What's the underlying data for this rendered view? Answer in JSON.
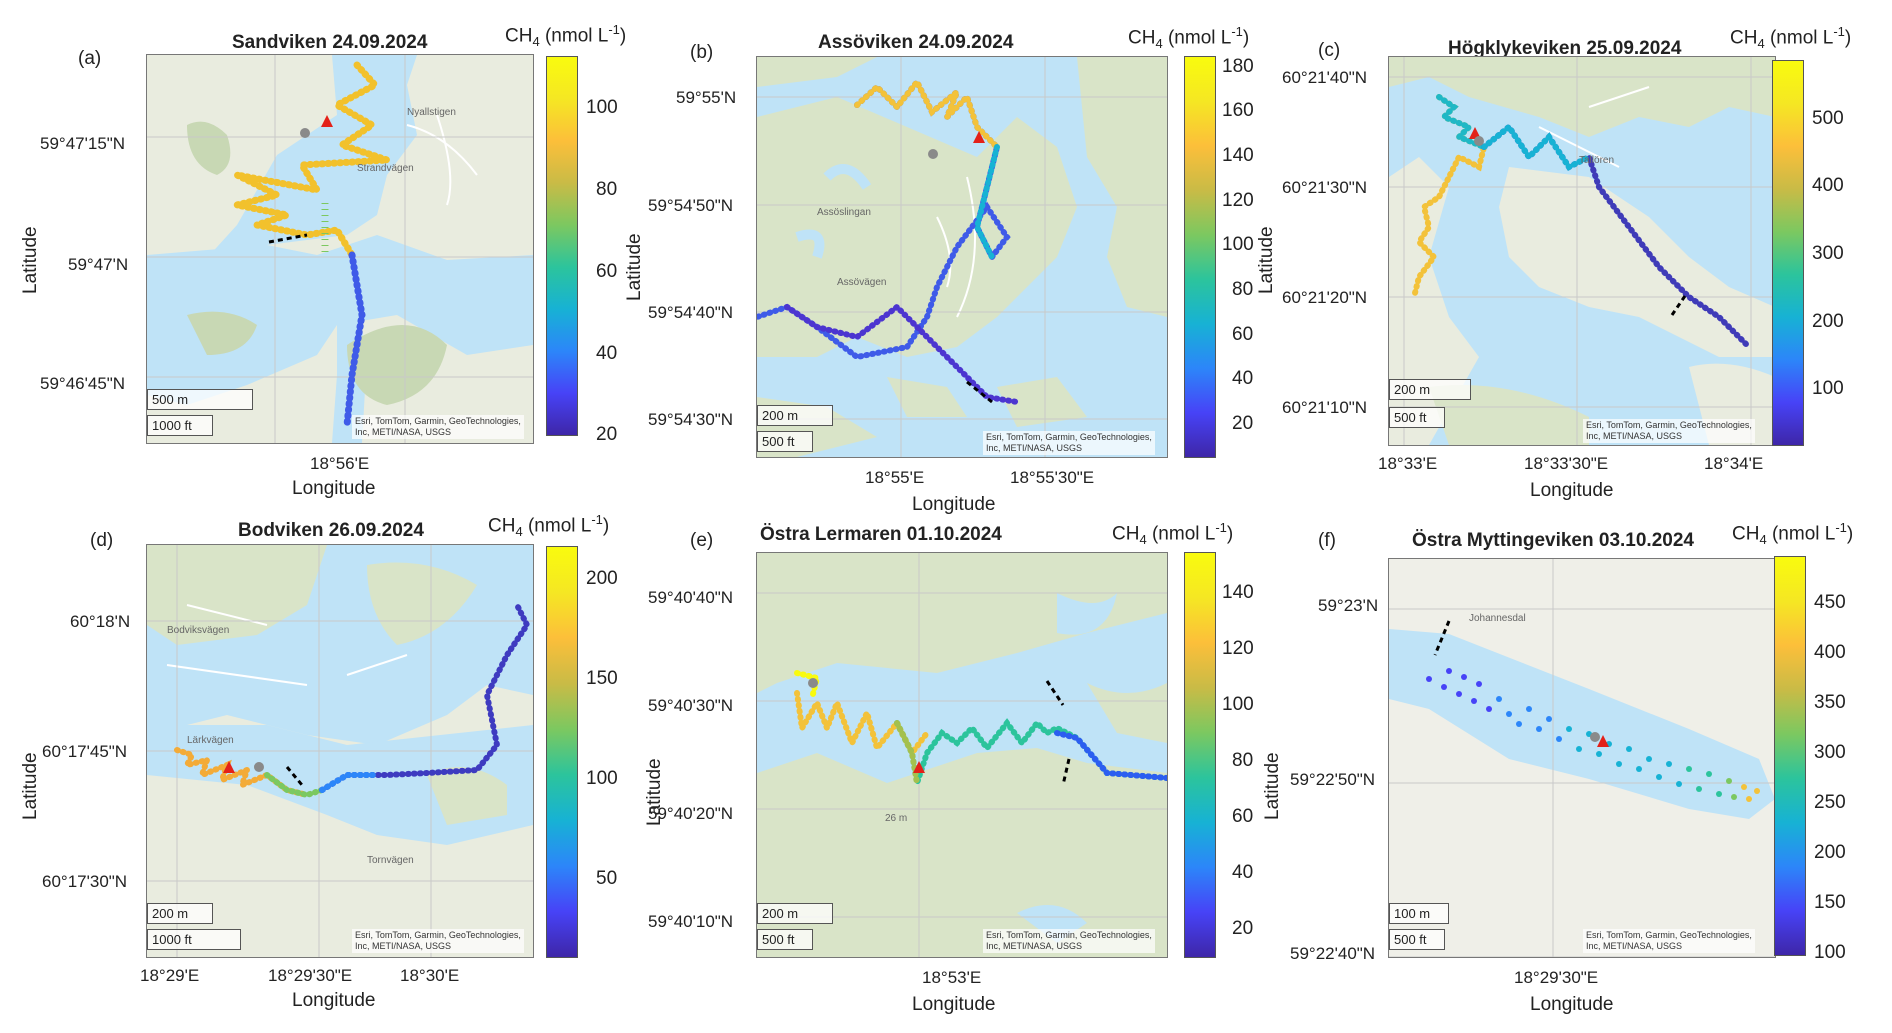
{
  "colorbar_title": {
    "prefix": "CH",
    "sub": "4",
    "unit_open": " (nmol L",
    "sup": "-1",
    "unit_close": ")"
  },
  "axis_labels": {
    "x": "Longitude",
    "y": "Latitude"
  },
  "attribution": [
    "Esri, TomTom, Garmin, GeoTechnologies,",
    "Inc, METI/NASA, USGS"
  ],
  "colormap": [
    "#3e26a8",
    "#4743f7",
    "#2c86f9",
    "#17b2d4",
    "#2cc49c",
    "#7cc860",
    "#c9bb46",
    "#fcbf3a",
    "#f5e723",
    "#f9fb0e"
  ],
  "panels": [
    {
      "id": "a",
      "label": "(a)",
      "title": "Sandviken 24.09.2024",
      "yticks": [
        "59°47'15\"N",
        "59°47'N",
        "59°46'45\"N"
      ],
      "xticks": [
        "18°56'E"
      ],
      "colorbar_ticks": [
        "100",
        "80",
        "60",
        "40",
        "20"
      ],
      "scale_bars": [
        "500 m",
        "1000 ft"
      ],
      "map_labels": [
        "Nyallstigen",
        "Strandvägen"
      ]
    },
    {
      "id": "b",
      "label": "(b)",
      "title": "Assöviken 24.09.2024",
      "yticks": [
        "59°55'N",
        "59°54'50\"N",
        "59°54'40\"N",
        "59°54'30\"N"
      ],
      "xticks": [
        "18°55'E",
        "18°55'30\"E"
      ],
      "colorbar_ticks": [
        "180",
        "160",
        "140",
        "120",
        "100",
        "80",
        "60",
        "40",
        "20"
      ],
      "scale_bars": [
        "200 m",
        "500 ft"
      ],
      "map_labels": [
        "Assöslingan",
        "Assövägen"
      ]
    },
    {
      "id": "c",
      "label": "(c)",
      "title": "Högklykeviken 25.09.2024",
      "yticks": [
        "60°21'40\"N",
        "60°21'30\"N",
        "60°21'20\"N",
        "60°21'10\"N"
      ],
      "xticks": [
        "18°33'E",
        "18°33'30\"E",
        "18°34'E"
      ],
      "colorbar_ticks": [
        "500",
        "400",
        "300",
        "200",
        "100"
      ],
      "scale_bars": [
        "200 m",
        "500 ft"
      ],
      "map_labels": [
        "Tallören"
      ]
    },
    {
      "id": "d",
      "label": "(d)",
      "title": "Bodviken 26.09.2024",
      "yticks": [
        "60°18'N",
        "60°17'45\"N",
        "60°17'30\"N"
      ],
      "xticks": [
        "18°29'E",
        "18°29'30\"E",
        "18°30'E"
      ],
      "colorbar_ticks": [
        "200",
        "150",
        "100",
        "50"
      ],
      "scale_bars": [
        "200 m",
        "1000 ft"
      ],
      "map_labels": [
        "Bodviksvägen",
        "Tornvägen",
        "Lärkvägen"
      ]
    },
    {
      "id": "e",
      "label": "(e)",
      "title": "Östra Lermaren 01.10.2024",
      "yticks": [
        "59°40'40\"N",
        "59°40'30\"N",
        "59°40'20\"N",
        "59°40'10\"N"
      ],
      "xticks": [
        "18°53'E"
      ],
      "colorbar_ticks": [
        "140",
        "120",
        "100",
        "80",
        "60",
        "40",
        "20"
      ],
      "scale_bars": [
        "200 m",
        "500 ft"
      ],
      "map_labels": [
        "26 m"
      ]
    },
    {
      "id": "f",
      "label": "(f)",
      "title": "Östra Myttingeviken 03.10.2024",
      "yticks": [
        "59°23'N",
        "59°22'50\"N",
        "59°22'40\"N"
      ],
      "xticks": [
        "18°29'30\"E"
      ],
      "colorbar_ticks": [
        "450",
        "400",
        "350",
        "300",
        "250",
        "200",
        "150",
        "100"
      ],
      "scale_bars": [
        "100 m",
        "500 ft"
      ],
      "map_labels": [
        "Johannesdal"
      ]
    }
  ]
}
